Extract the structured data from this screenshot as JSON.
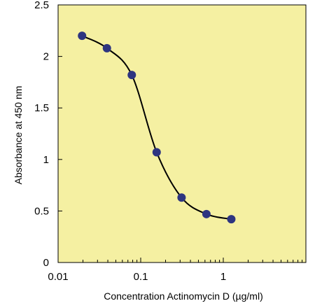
{
  "chart_data": {
    "type": "scatter",
    "title": "",
    "xlabel": "Concentration Actinomycin D (µg/ml)",
    "ylabel": "Absorbance at 450 nm",
    "x_scale": "log",
    "xlim": [
      0.01,
      10
    ],
    "ylim": [
      0,
      2.5
    ],
    "x_ticks": [
      {
        "value": 0.01,
        "label": "0.01"
      },
      {
        "value": 0.1,
        "label": "0.1"
      },
      {
        "value": 1,
        "label": "1"
      }
    ],
    "y_ticks": [
      {
        "value": 0,
        "label": "0"
      },
      {
        "value": 0.5,
        "label": "0.5"
      },
      {
        "value": 1,
        "label": "1"
      },
      {
        "value": 1.5,
        "label": "1.5"
      },
      {
        "value": 2,
        "label": "2"
      },
      {
        "value": 2.5,
        "label": "2.5"
      }
    ],
    "grid": false,
    "legend": "none",
    "series": [
      {
        "x": [
          0.0195,
          0.039,
          0.078,
          0.156,
          0.3125,
          0.625,
          1.25
        ],
        "y": [
          2.2,
          2.08,
          1.82,
          1.07,
          0.63,
          0.47,
          0.42
        ],
        "marker_color": "#2e3580",
        "line_color": "#000000",
        "fit_line": "sigmoid"
      }
    ],
    "colors": {
      "plot_background": "#f5f0a2",
      "axis": "#000000"
    }
  }
}
